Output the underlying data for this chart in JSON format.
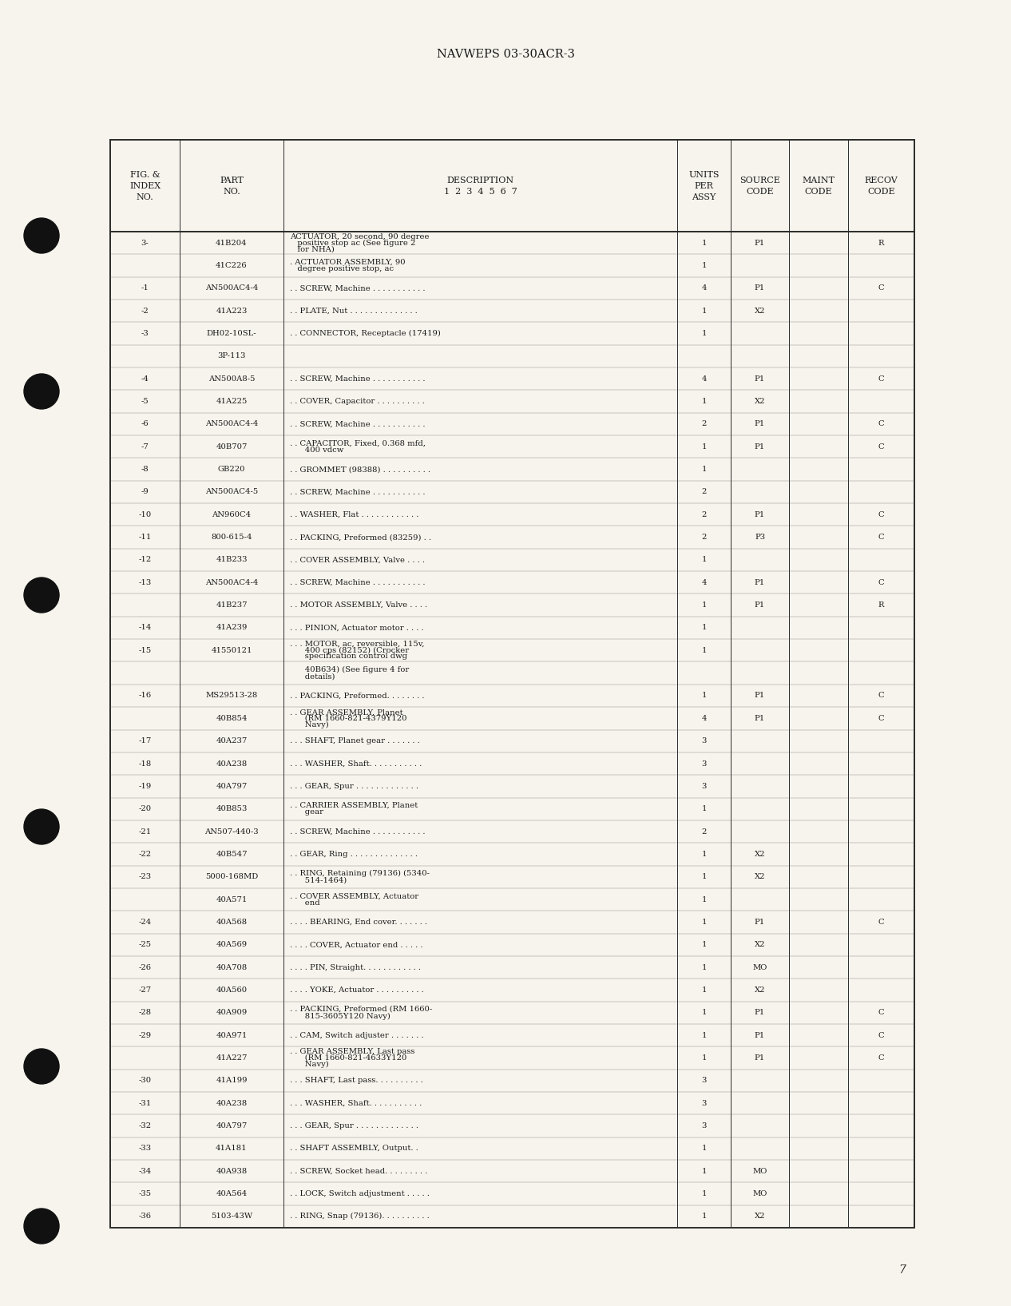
{
  "header_text": "NAVWEPS 03-30ACR-3",
  "page_number": "7",
  "background_color": "#f7f4ed",
  "rows": [
    {
      "fig": "3-",
      "part": "41B204",
      "desc1": "ACTUATOR, 20 second, 90 degree",
      "desc2": "   positive stop ac (See figure 2",
      "desc3": "   for NHA)",
      "units": "1",
      "source": "P1",
      "maint": "",
      "recov": "R"
    },
    {
      "fig": "",
      "part": "41C226",
      "desc1": ". ACTUATOR ASSEMBLY, 90",
      "desc2": "   degree positive stop, ac",
      "desc3": "",
      "units": "1",
      "source": "",
      "maint": "",
      "recov": ""
    },
    {
      "fig": "-1",
      "part": "AN500AC4-4",
      "desc1": ". . SCREW, Machine . . . . . . . . . . .",
      "desc2": "",
      "desc3": "",
      "units": "4",
      "source": "P1",
      "maint": "",
      "recov": "C"
    },
    {
      "fig": "-2",
      "part": "41A223",
      "desc1": ". . PLATE, Nut . . . . . . . . . . . . . .",
      "desc2": "",
      "desc3": "",
      "units": "1",
      "source": "X2",
      "maint": "",
      "recov": ""
    },
    {
      "fig": "-3",
      "part": "DH02-10SL-",
      "desc1": ". . CONNECTOR, Receptacle (17419)",
      "desc2": "",
      "desc3": "",
      "units": "1",
      "source": "",
      "maint": "",
      "recov": ""
    },
    {
      "fig": "",
      "part": "3P-113",
      "desc1": "",
      "desc2": "",
      "desc3": "",
      "units": "",
      "source": "",
      "maint": "",
      "recov": ""
    },
    {
      "fig": "-4",
      "part": "AN500A8-5",
      "desc1": ". . SCREW, Machine . . . . . . . . . . .",
      "desc2": "",
      "desc3": "",
      "units": "4",
      "source": "P1",
      "maint": "",
      "recov": "C"
    },
    {
      "fig": "-5",
      "part": "41A225",
      "desc1": ". . COVER, Capacitor . . . . . . . . . .",
      "desc2": "",
      "desc3": "",
      "units": "1",
      "source": "X2",
      "maint": "",
      "recov": ""
    },
    {
      "fig": "-6",
      "part": "AN500AC4-4",
      "desc1": ". . SCREW, Machine . . . . . . . . . . .",
      "desc2": "",
      "desc3": "",
      "units": "2",
      "source": "P1",
      "maint": "",
      "recov": "C"
    },
    {
      "fig": "-7",
      "part": "40B707",
      "desc1": ". . CAPACITOR, Fixed, 0.368 mfd,",
      "desc2": "      400 vdcw",
      "desc3": "",
      "units": "1",
      "source": "P1",
      "maint": "",
      "recov": "C"
    },
    {
      "fig": "-8",
      "part": "GB220",
      "desc1": ". . GROMMET (98388) . . . . . . . . . .",
      "desc2": "",
      "desc3": "",
      "units": "1",
      "source": "",
      "maint": "",
      "recov": ""
    },
    {
      "fig": "-9",
      "part": "AN500AC4-5",
      "desc1": ". . SCREW, Machine . . . . . . . . . . .",
      "desc2": "",
      "desc3": "",
      "units": "2",
      "source": "",
      "maint": "",
      "recov": ""
    },
    {
      "fig": "-10",
      "part": "AN960C4",
      "desc1": ". . WASHER, Flat . . . . . . . . . . . .",
      "desc2": "",
      "desc3": "",
      "units": "2",
      "source": "P1",
      "maint": "",
      "recov": "C"
    },
    {
      "fig": "-11",
      "part": "800-615-4",
      "desc1": ". . PACKING, Preformed (83259) . .",
      "desc2": "",
      "desc3": "",
      "units": "2",
      "source": "P3",
      "maint": "",
      "recov": "C"
    },
    {
      "fig": "-12",
      "part": "41B233",
      "desc1": ". . COVER ASSEMBLY, Valve . . . .",
      "desc2": "",
      "desc3": "",
      "units": "1",
      "source": "",
      "maint": "",
      "recov": ""
    },
    {
      "fig": "-13",
      "part": "AN500AC4-4",
      "desc1": ". . SCREW, Machine . . . . . . . . . . .",
      "desc2": "",
      "desc3": "",
      "units": "4",
      "source": "P1",
      "maint": "",
      "recov": "C"
    },
    {
      "fig": "",
      "part": "41B237",
      "desc1": ". . MOTOR ASSEMBLY, Valve . . . .",
      "desc2": "",
      "desc3": "",
      "units": "1",
      "source": "P1",
      "maint": "",
      "recov": "R"
    },
    {
      "fig": "-14",
      "part": "41A239",
      "desc1": ". . . PINION, Actuator motor . . . .",
      "desc2": "",
      "desc3": "",
      "units": "1",
      "source": "",
      "maint": "",
      "recov": ""
    },
    {
      "fig": "-15",
      "part": "41550121",
      "desc1": ". . . MOTOR, ac, reversible, 115v,",
      "desc2": "      400 cps (82152) (Crocker",
      "desc3": "      specification control dwg",
      "units": "1",
      "source": "",
      "maint": "",
      "recov": ""
    },
    {
      "fig": "",
      "part": "",
      "desc1": "      40B634) (See figure 4 for",
      "desc2": "      details)",
      "desc3": "",
      "units": "",
      "source": "",
      "maint": "",
      "recov": ""
    },
    {
      "fig": "-16",
      "part": "MS29513-28",
      "desc1": ". . PACKING, Preformed. . . . . . . .",
      "desc2": "",
      "desc3": "",
      "units": "1",
      "source": "P1",
      "maint": "",
      "recov": "C"
    },
    {
      "fig": "",
      "part": "40B854",
      "desc1": ". . GEAR ASSEMBLY, Planet",
      "desc2": "      (RM 1660-821-4379Y120",
      "desc3": "      Navy)",
      "units": "4",
      "source": "P1",
      "maint": "",
      "recov": "C"
    },
    {
      "fig": "-17",
      "part": "40A237",
      "desc1": ". . . SHAFT, Planet gear . . . . . . .",
      "desc2": "",
      "desc3": "",
      "units": "3",
      "source": "",
      "maint": "",
      "recov": ""
    },
    {
      "fig": "-18",
      "part": "40A238",
      "desc1": ". . . WASHER, Shaft. . . . . . . . . . .",
      "desc2": "",
      "desc3": "",
      "units": "3",
      "source": "",
      "maint": "",
      "recov": ""
    },
    {
      "fig": "-19",
      "part": "40A797",
      "desc1": ". . . GEAR, Spur . . . . . . . . . . . . .",
      "desc2": "",
      "desc3": "",
      "units": "3",
      "source": "",
      "maint": "",
      "recov": ""
    },
    {
      "fig": "-20",
      "part": "40B853",
      "desc1": ". . CARRIER ASSEMBLY, Planet",
      "desc2": "      gear",
      "desc3": "",
      "units": "1",
      "source": "",
      "maint": "",
      "recov": ""
    },
    {
      "fig": "-21",
      "part": "AN507-440-3",
      "desc1": ". . SCREW, Machine . . . . . . . . . . .",
      "desc2": "",
      "desc3": "",
      "units": "2",
      "source": "",
      "maint": "",
      "recov": ""
    },
    {
      "fig": "-22",
      "part": "40B547",
      "desc1": ". . GEAR, Ring . . . . . . . . . . . . . .",
      "desc2": "",
      "desc3": "",
      "units": "1",
      "source": "X2",
      "maint": "",
      "recov": ""
    },
    {
      "fig": "-23",
      "part": "5000-168MD",
      "desc1": ". . RING, Retaining (79136) (5340-",
      "desc2": "      514-1464)",
      "desc3": "",
      "units": "1",
      "source": "X2",
      "maint": "",
      "recov": ""
    },
    {
      "fig": "",
      "part": "40A571",
      "desc1": ". . COVER ASSEMBLY, Actuator",
      "desc2": "      end",
      "desc3": "",
      "units": "1",
      "source": "",
      "maint": "",
      "recov": ""
    },
    {
      "fig": "-24",
      "part": "40A568",
      "desc1": ". . . . BEARING, End cover. . . . . . .",
      "desc2": "",
      "desc3": "",
      "units": "1",
      "source": "P1",
      "maint": "",
      "recov": "C"
    },
    {
      "fig": "-25",
      "part": "40A569",
      "desc1": ". . . . COVER, Actuator end . . . . .",
      "desc2": "",
      "desc3": "",
      "units": "1",
      "source": "X2",
      "maint": "",
      "recov": ""
    },
    {
      "fig": "-26",
      "part": "40A708",
      "desc1": ". . . . PIN, Straight. . . . . . . . . . . .",
      "desc2": "",
      "desc3": "",
      "units": "1",
      "source": "MO",
      "maint": "",
      "recov": ""
    },
    {
      "fig": "-27",
      "part": "40A560",
      "desc1": ". . . . YOKE, Actuator . . . . . . . . . .",
      "desc2": "",
      "desc3": "",
      "units": "1",
      "source": "X2",
      "maint": "",
      "recov": ""
    },
    {
      "fig": "-28",
      "part": "40A909",
      "desc1": ". . PACKING, Preformed (RM 1660-",
      "desc2": "      815-3605Y120 Navy)",
      "desc3": "",
      "units": "1",
      "source": "P1",
      "maint": "",
      "recov": "C"
    },
    {
      "fig": "-29",
      "part": "40A971",
      "desc1": ". . CAM, Switch adjuster . . . . . . .",
      "desc2": "",
      "desc3": "",
      "units": "1",
      "source": "P1",
      "maint": "",
      "recov": "C"
    },
    {
      "fig": "",
      "part": "41A227",
      "desc1": ". . GEAR ASSEMBLY, Last pass",
      "desc2": "      (RM 1660-821-4633Y120",
      "desc3": "      Navy)",
      "units": "1",
      "source": "P1",
      "maint": "",
      "recov": "C"
    },
    {
      "fig": "-30",
      "part": "41A199",
      "desc1": ". . . SHAFT, Last pass. . . . . . . . . .",
      "desc2": "",
      "desc3": "",
      "units": "3",
      "source": "",
      "maint": "",
      "recov": ""
    },
    {
      "fig": "-31",
      "part": "40A238",
      "desc1": ". . . WASHER, Shaft. . . . . . . . . . .",
      "desc2": "",
      "desc3": "",
      "units": "3",
      "source": "",
      "maint": "",
      "recov": ""
    },
    {
      "fig": "-32",
      "part": "40A797",
      "desc1": ". . . GEAR, Spur . . . . . . . . . . . . .",
      "desc2": "",
      "desc3": "",
      "units": "3",
      "source": "",
      "maint": "",
      "recov": ""
    },
    {
      "fig": "-33",
      "part": "41A181",
      "desc1": ". . SHAFT ASSEMBLY, Output. .",
      "desc2": "",
      "desc3": "",
      "units": "1",
      "source": "",
      "maint": "",
      "recov": ""
    },
    {
      "fig": "-34",
      "part": "40A938",
      "desc1": ". . SCREW, Socket head. . . . . . . . .",
      "desc2": "",
      "desc3": "",
      "units": "1",
      "source": "MO",
      "maint": "",
      "recov": ""
    },
    {
      "fig": "-35",
      "part": "40A564",
      "desc1": ". . LOCK, Switch adjustment . . . . .",
      "desc2": "",
      "desc3": "",
      "units": "1",
      "source": "MO",
      "maint": "",
      "recov": ""
    },
    {
      "fig": "-36",
      "part": "5103-43W",
      "desc1": ". . RING, Snap (79136). . . . . . . . . .",
      "desc2": "",
      "desc3": "",
      "units": "1",
      "source": "X2",
      "maint": "",
      "recov": ""
    }
  ]
}
